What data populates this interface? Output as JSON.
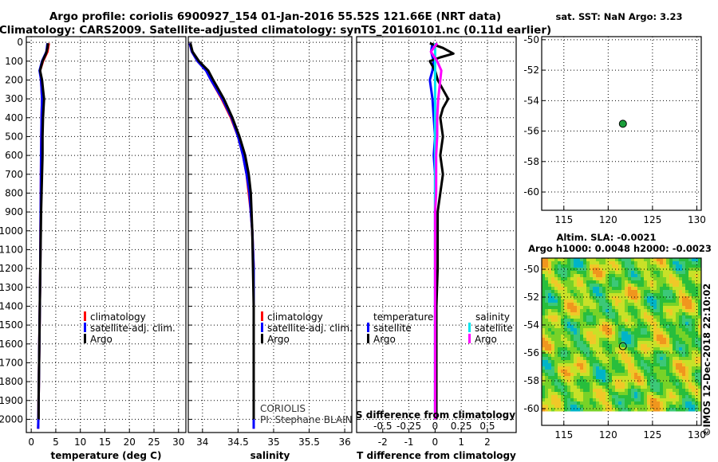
{
  "header": {
    "title_line1": "Argo profile: coriolis 6900927_154 01-Jan-2016 55.52S 121.66E (NRT data)",
    "title_line2": "Climatology: CARS2009. Satellite-adjusted climatology: synTS_20160101.nc (0.11d earlier)"
  },
  "colors": {
    "climatology": "#ff0000",
    "satellite_adj": "#0000ff",
    "argo": "#000000",
    "satellite_sal": "#00e5ee",
    "argo_sal": "#ff00ff",
    "marker": "#1a9e3a"
  },
  "labels": {
    "legend_climatology": "climatology",
    "legend_satellite_adj": "satellite-adj. clim.",
    "legend_argo": "Argo",
    "diff_temperature": "temperature",
    "diff_salinity": "salinity",
    "diff_satellite": "satellite",
    "diff_argo": "Argo",
    "diff_top_label": "S difference from climatology",
    "credit_institution": "CORIOLIS",
    "credit_pi": "PI: Stephane BLAIN",
    "sst_title": "sat. SST: NaN Argo: 3.23",
    "sla_title1": "Altim. SLA: -0.0021",
    "sla_title2": "Argo h1000: 0.0048 h2000: -0.0023",
    "watermark": "©IMOS 12-Dec-2018 22:10:02"
  },
  "chart_data": [
    {
      "type": "line",
      "name": "temperature",
      "xlabel": "temperature (deg C)",
      "ylabel": "depth",
      "xlim": [
        -1,
        31.5
      ],
      "ylim": [
        2070,
        -30
      ],
      "xticks": [
        0,
        5,
        10,
        15,
        20,
        25,
        30
      ],
      "yticks": [
        0,
        100,
        200,
        300,
        400,
        500,
        600,
        700,
        800,
        900,
        1000,
        1100,
        1200,
        1300,
        1400,
        1500,
        1600,
        1700,
        1800,
        1900,
        2000
      ],
      "grid": true,
      "series": [
        {
          "name": "climatology",
          "color": "#ff0000",
          "depth": [
            5,
            50,
            100,
            150,
            200,
            300,
            400,
            600,
            800,
            1000,
            1200,
            1400,
            1600,
            1800,
            2000,
            2050
          ],
          "values": [
            3.6,
            3.3,
            2.4,
            1.8,
            2.0,
            2.2,
            2.1,
            2.0,
            1.95,
            1.9,
            1.85,
            1.75,
            1.65,
            1.55,
            1.45,
            1.4
          ]
        },
        {
          "name": "satellite-adj. clim.",
          "color": "#0000ff",
          "depth": [
            5,
            50,
            100,
            150,
            200,
            300,
            400,
            600,
            800,
            1000,
            1200,
            1400,
            1600,
            1800,
            2000,
            2050
          ],
          "values": [
            3.3,
            3.1,
            2.2,
            1.7,
            2.0,
            2.2,
            2.1,
            2.0,
            1.95,
            1.9,
            1.85,
            1.75,
            1.65,
            1.55,
            1.45,
            1.4
          ]
        },
        {
          "name": "Argo",
          "color": "#000000",
          "depth": [
            5,
            30,
            60,
            100,
            150,
            200,
            250,
            300,
            400,
            500,
            600,
            700,
            800,
            900,
            1000,
            1100,
            1200,
            1300,
            1400,
            1500,
            1700,
            1900,
            2000
          ],
          "values": [
            3.4,
            3.3,
            3.0,
            2.3,
            1.8,
            2.2,
            2.4,
            2.6,
            2.4,
            2.3,
            2.3,
            2.2,
            2.1,
            2.0,
            1.95,
            1.9,
            1.85,
            1.8,
            1.75,
            1.7,
            1.6,
            1.5,
            1.5
          ]
        }
      ]
    },
    {
      "type": "line",
      "name": "salinity",
      "xlabel": "salinity",
      "ylabel": "depth",
      "xlim": [
        33.8,
        36.1
      ],
      "ylim": [
        2070,
        -30
      ],
      "xticks": [
        34,
        34.5,
        35,
        35.5,
        36
      ],
      "xticklabels": [
        "34",
        "34.5",
        "35",
        "35.5",
        "36"
      ],
      "grid": true,
      "series": [
        {
          "name": "climatology",
          "color": "#ff0000",
          "depth": [
            5,
            50,
            100,
            150,
            200,
            300,
            400,
            500,
            600,
            700,
            800,
            900,
            1000,
            1200,
            1400,
            1600,
            1800,
            2000,
            2050
          ],
          "values": [
            33.82,
            33.85,
            33.93,
            34.05,
            34.12,
            34.27,
            34.4,
            34.5,
            34.57,
            34.62,
            34.65,
            34.68,
            34.7,
            34.72,
            34.72,
            34.72,
            34.72,
            34.72,
            34.72
          ]
        },
        {
          "name": "satellite-adj. clim.",
          "color": "#0000ff",
          "depth": [
            5,
            50,
            100,
            150,
            200,
            300,
            400,
            500,
            600,
            700,
            800,
            900,
            1000,
            1200,
            1400,
            1600,
            1800,
            2000,
            2050
          ],
          "values": [
            33.82,
            33.85,
            33.93,
            34.05,
            34.12,
            34.28,
            34.41,
            34.5,
            34.57,
            34.62,
            34.66,
            34.68,
            34.7,
            34.72,
            34.72,
            34.72,
            34.72,
            34.72,
            34.72
          ]
        },
        {
          "name": "Argo",
          "color": "#000000",
          "depth": [
            5,
            50,
            100,
            150,
            200,
            300,
            400,
            500,
            600,
            700,
            800,
            900,
            1000,
            1200,
            1400,
            1600,
            1800,
            2000
          ],
          "values": [
            33.83,
            33.86,
            33.95,
            34.08,
            34.15,
            34.3,
            34.42,
            34.52,
            34.6,
            34.65,
            34.68,
            34.69,
            34.7,
            34.71,
            34.72,
            34.72,
            34.72,
            34.72
          ]
        }
      ]
    },
    {
      "type": "line",
      "name": "difference from climatology",
      "xlabel": "T difference from climatology",
      "xlabel_top": "S difference from climatology",
      "xlim": [
        -3,
        3.1
      ],
      "ylim": [
        2070,
        -30
      ],
      "xticks": [
        -2,
        -1,
        0,
        1,
        2
      ],
      "xticklabels_top": [
        "-0.5",
        "-0.25",
        "0",
        "0.25",
        "0.5"
      ],
      "grid": true,
      "series": [
        {
          "name": "temperature satellite",
          "color": "#0000ff",
          "depth": [
            5,
            50,
            100,
            150,
            200,
            300,
            400,
            500,
            600,
            700,
            800,
            900,
            1000,
            1200,
            1400,
            1600,
            1800,
            2000
          ],
          "values": [
            -0.1,
            -0.15,
            -0.05,
            -0.1,
            -0.2,
            -0.1,
            -0.05,
            0,
            -0.05,
            0,
            0,
            0,
            0,
            0,
            0,
            0,
            0,
            0
          ]
        },
        {
          "name": "temperature Argo",
          "color": "#000000",
          "depth": [
            5,
            30,
            60,
            80,
            100,
            150,
            200,
            250,
            300,
            350,
            400,
            500,
            600,
            700,
            800,
            900,
            1000,
            1200,
            1400,
            1600,
            1800,
            2000
          ],
          "values": [
            -0.2,
            0.3,
            0.7,
            0.2,
            -0.2,
            0,
            0.1,
            0.3,
            0.5,
            0.3,
            0.2,
            0.3,
            0.2,
            0.3,
            0.2,
            0.1,
            0.1,
            0.1,
            0.05,
            0.05,
            0.05,
            0.05
          ]
        },
        {
          "name": "salinity satellite",
          "color": "#00e5ee",
          "depth": [
            5,
            50,
            100,
            200,
            400,
            600,
            800,
            1000,
            1200,
            1400,
            1600,
            1800,
            2000
          ],
          "values": [
            0,
            0,
            0,
            0,
            0,
            0,
            0,
            0,
            0,
            0,
            0,
            0,
            0
          ]
        },
        {
          "name": "salinity Argo",
          "color": "#ff00ff",
          "depth": [
            5,
            50,
            100,
            150,
            200,
            300,
            400,
            500,
            600,
            700,
            800,
            900,
            1000,
            1200,
            1400,
            1600,
            1800,
            2000
          ],
          "values": [
            0.02,
            -0.04,
            0.02,
            0.06,
            0.05,
            0.03,
            0.02,
            0.02,
            0.01,
            0.01,
            0.01,
            0,
            0,
            0,
            0,
            0,
            0,
            0
          ]
        }
      ]
    },
    {
      "type": "scatter",
      "name": "sat. SST map",
      "title": "sat. SST: NaN Argo: 3.23",
      "xlim": [
        112.5,
        130.5
      ],
      "ylim": [
        -61.2,
        -49.8
      ],
      "xticks": [
        115,
        120,
        125,
        130
      ],
      "yticks": [
        -50,
        -52,
        -54,
        -56,
        -58,
        -60
      ],
      "grid": true,
      "points": [
        {
          "x": 121.66,
          "y": -55.52
        }
      ]
    },
    {
      "type": "heatmap",
      "name": "altim. SLA map",
      "title": "Altim. SLA: -0.0021",
      "subtitle": "Argo h1000: 0.0048 h2000: -0.0023",
      "xlim": [
        112.5,
        130.5
      ],
      "ylim": [
        -61.2,
        -49.2
      ],
      "xticks": [
        115,
        120,
        125,
        130
      ],
      "yticks": [
        -50,
        -52,
        -54,
        -56,
        -58,
        -60
      ],
      "data_extent": {
        "lat": [
          -60,
          -49.2
        ]
      },
      "points": [
        {
          "x": 121.66,
          "y": -55.52
        }
      ]
    }
  ]
}
